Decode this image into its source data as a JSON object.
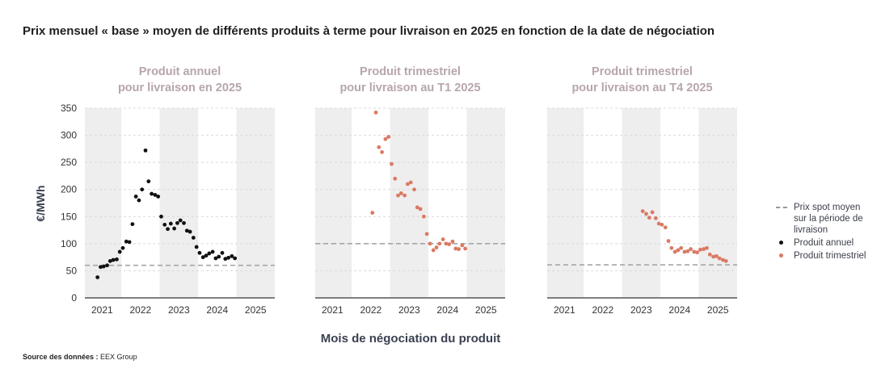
{
  "title": "Prix mensuel « base » moyen de différents produits à terme pour livraison en 2025 en fonction de la date de négociation",
  "source_label": "Source des données :",
  "source_value": "EEX Group",
  "colors": {
    "annual": "#111111",
    "quarterly": "#d97a63",
    "spot": "#a6a6a6",
    "panel_title": "#b7a5ab",
    "band": "#efeeef",
    "axis": "#555555"
  },
  "legend": [
    {
      "key": "spot",
      "label": "Prix spot moyen sur la  période de livraison"
    },
    {
      "key": "annual",
      "label": "Produit annuel"
    },
    {
      "key": "quarterly",
      "label": "Produit trimestriel"
    }
  ],
  "chart_data": {
    "type": "scatter",
    "ylabel": "€/MWh",
    "xlabel": "Mois de négociation du produit",
    "ylim": [
      0,
      350
    ],
    "yticks": [
      0,
      50,
      100,
      150,
      200,
      250,
      300,
      350
    ],
    "x_range": [
      2020.55,
      2025.5
    ],
    "xticks": [
      "2021",
      "2022",
      "2023",
      "2024",
      "2025"
    ],
    "panels": [
      {
        "title_lines": [
          "Produit annuel",
          "pour livraison en 2025"
        ],
        "spot_price": 60,
        "series_key": "annual",
        "x": [
          2020.88,
          2020.96,
          2021.04,
          2021.13,
          2021.21,
          2021.29,
          2021.38,
          2021.46,
          2021.54,
          2021.63,
          2021.71,
          2021.79,
          2021.88,
          2021.96,
          2022.04,
          2022.13,
          2022.21,
          2022.29,
          2022.38,
          2022.46,
          2022.54,
          2022.63,
          2022.71,
          2022.79,
          2022.88,
          2022.96,
          2023.04,
          2023.13,
          2023.21,
          2023.29,
          2023.38,
          2023.46,
          2023.54,
          2023.63,
          2023.71,
          2023.79,
          2023.88,
          2023.96,
          2024.04,
          2024.13,
          2024.21,
          2024.29,
          2024.38,
          2024.46
        ],
        "y": [
          38,
          57,
          58,
          60,
          68,
          70,
          71,
          85,
          92,
          104,
          103,
          136,
          187,
          180,
          200,
          272,
          215,
          192,
          190,
          187,
          150,
          135,
          127,
          137,
          128,
          138,
          143,
          138,
          124,
          122,
          111,
          94,
          83,
          75,
          78,
          82,
          85,
          73,
          76,
          83,
          72,
          74,
          77,
          73
        ]
      },
      {
        "title_lines": [
          "Produit trimestriel",
          "pour livraison au T1 2025"
        ],
        "spot_price": 100,
        "series_key": "quarterly",
        "x": [
          2022.04,
          2022.13,
          2022.21,
          2022.29,
          2022.38,
          2022.46,
          2022.54,
          2022.63,
          2022.71,
          2022.79,
          2022.88,
          2022.96,
          2023.04,
          2023.13,
          2023.21,
          2023.29,
          2023.38,
          2023.46,
          2023.54,
          2023.63,
          2023.71,
          2023.79,
          2023.88,
          2023.96,
          2024.04,
          2024.13,
          2024.21,
          2024.29,
          2024.38,
          2024.46
        ],
        "y": [
          157,
          342,
          278,
          269,
          293,
          297,
          247,
          220,
          189,
          193,
          189,
          210,
          213,
          200,
          167,
          164,
          150,
          118,
          100,
          88,
          93,
          100,
          108,
          100,
          99,
          104,
          91,
          90,
          97,
          91
        ]
      },
      {
        "title_lines": [
          "Produit trimestriel",
          "pour livraison au T4 2025"
        ],
        "spot_price": 61,
        "series_key": "quarterly",
        "x": [
          2023.04,
          2023.13,
          2023.21,
          2023.29,
          2023.38,
          2023.46,
          2023.54,
          2023.63,
          2023.71,
          2023.79,
          2023.88,
          2023.96,
          2024.04,
          2024.13,
          2024.21,
          2024.29,
          2024.38,
          2024.46,
          2024.54,
          2024.63,
          2024.71,
          2024.79,
          2024.88,
          2024.96,
          2025.04,
          2025.13,
          2025.21
        ],
        "y": [
          160,
          155,
          148,
          158,
          147,
          137,
          135,
          130,
          105,
          92,
          85,
          88,
          92,
          85,
          86,
          90,
          85,
          84,
          89,
          90,
          92,
          80,
          76,
          77,
          73,
          70,
          68
        ]
      }
    ]
  }
}
